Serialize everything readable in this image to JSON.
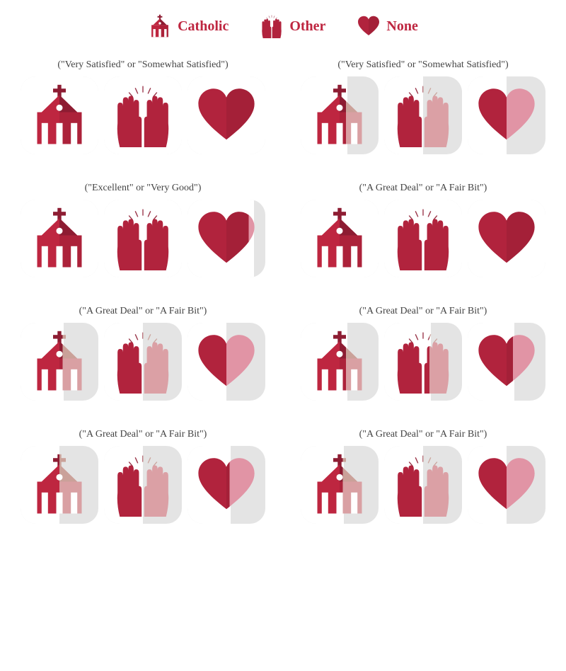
{
  "colors": {
    "primary": "#be2640",
    "primary_dark": "#8d1c32",
    "faded": "#e1a0aa",
    "faded_shadow": "#caa199",
    "box_bg": "#e4e4e4",
    "fill_bg": "#ffffff",
    "text": "#444444"
  },
  "legend": [
    {
      "icon": "church",
      "label": "Catholic"
    },
    {
      "icon": "hands",
      "label": "Other"
    },
    {
      "icon": "heart",
      "label": "None"
    }
  ],
  "panels": [
    {
      "subtitle": "(\"Very Satisfied\" or \"Somewhat Satisfied\")",
      "values": {
        "catholic": 100,
        "other": 100,
        "none": 100
      }
    },
    {
      "subtitle": "(\"Very Satisfied\" or \"Somewhat Satisfied\")",
      "values": {
        "catholic": 60,
        "other": 50,
        "none": 50
      }
    },
    {
      "subtitle": "(\"Excellent\" or \"Very Good\")",
      "values": {
        "catholic": 100,
        "other": 100,
        "none": 85
      }
    },
    {
      "subtitle": "(\"A Great Deal\" or \"A Fair Bit\")",
      "values": {
        "catholic": 100,
        "other": 100,
        "none": 100
      }
    },
    {
      "subtitle": "(\"A Great Deal\" or \"A Fair Bit\")",
      "values": {
        "catholic": 55,
        "other": 50,
        "none": 50
      }
    },
    {
      "subtitle": "(\"A Great Deal\" or \"A Fair Bit\")",
      "values": {
        "catholic": 60,
        "other": 60,
        "none": 60
      }
    },
    {
      "subtitle": "(\"A Great Deal\" or \"A Fair Bit\")",
      "values": {
        "catholic": 50,
        "other": 50,
        "none": 55
      }
    },
    {
      "subtitle": "(\"A Great Deal\" or \"A Fair Bit\")",
      "values": {
        "catholic": 55,
        "other": 50,
        "none": 50
      }
    }
  ],
  "box_size": 110,
  "box_radius": 22,
  "subtitle_fontsize": 14,
  "legend_fontsize": 20
}
